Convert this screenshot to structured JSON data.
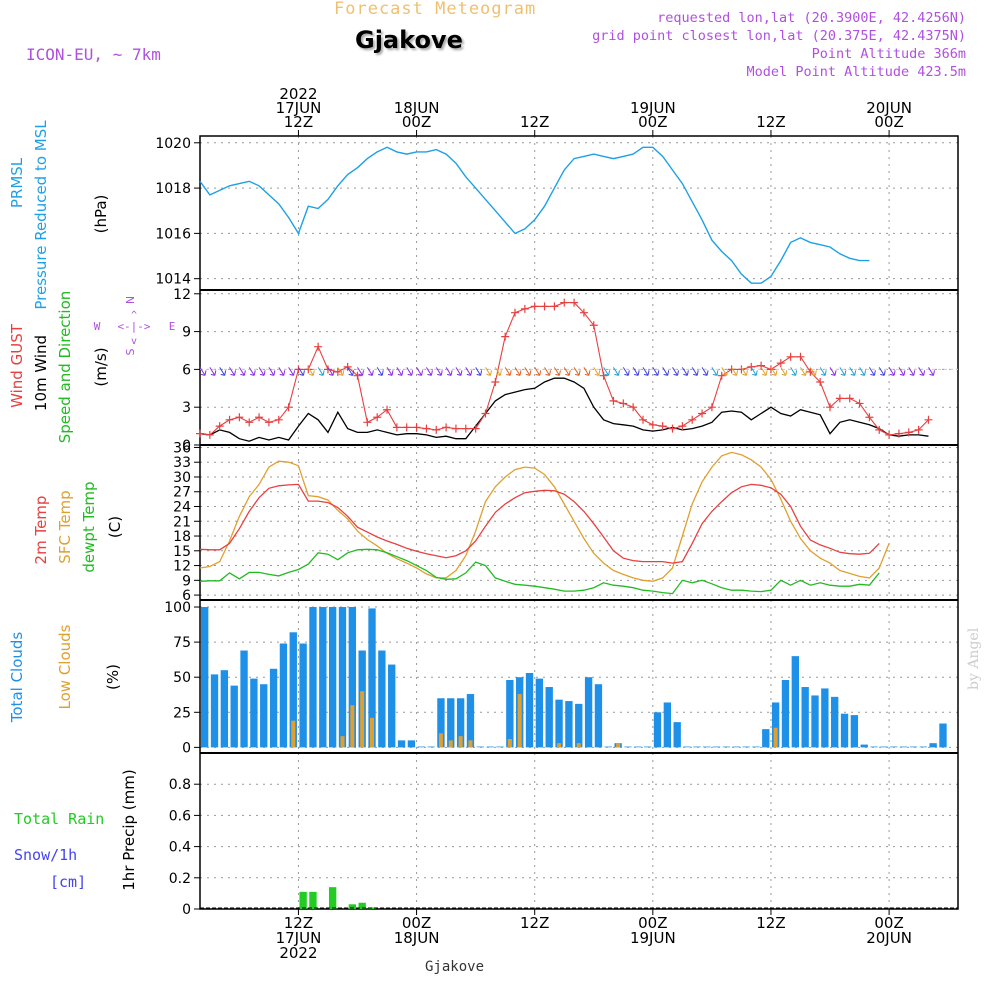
{
  "header": {
    "subtitle": "Forecast Meteogram",
    "location": "Gjakove",
    "model": "ICON-EU, ~ 7km",
    "requested": "requested lon,lat (20.3900E, 42.4256N)",
    "gridpoint": "grid point closest lon,lat (20.375E, 42.4375N)",
    "point_alt": "Point Altitude 366m",
    "model_alt": "Model Point Altitude 423.5m",
    "watermark": "by Angel",
    "footer_location": "Gjakove"
  },
  "colors": {
    "pressure": "#1ea0e6",
    "gust": "#e84040",
    "wind": "#000000",
    "temp2m": "#e84040",
    "sfc": "#e0a030",
    "dewpt": "#22bb22",
    "total_clouds": "#1e90e8",
    "low_clouds": "#e0a030",
    "rain": "#22cc22",
    "snow": "#4444ee",
    "header_purple": "#b050e0",
    "subtitle": "#f0c070"
  },
  "chart_data": {
    "type": "line",
    "time_axis": {
      "start_hour": 0,
      "end_hour": 77,
      "hour_of_first_point": "2022-06-17 02Z",
      "top_ticks": [
        {
          "hour": 10,
          "lines": [
            "2022",
            "17JUN",
            "12Z"
          ]
        },
        {
          "hour": 22,
          "lines": [
            "18JUN",
            "00Z"
          ]
        },
        {
          "hour": 34,
          "lines": [
            "12Z"
          ]
        },
        {
          "hour": 46,
          "lines": [
            "19JUN",
            "00Z"
          ]
        },
        {
          "hour": 58,
          "lines": [
            "12Z"
          ]
        },
        {
          "hour": 70,
          "lines": [
            "20JUN",
            "00Z"
          ]
        }
      ],
      "bottom_ticks": [
        {
          "hour": 10,
          "lines": [
            "12Z",
            "17JUN",
            "2022"
          ]
        },
        {
          "hour": 22,
          "lines": [
            "00Z",
            "18JUN"
          ]
        },
        {
          "hour": 34,
          "lines": [
            "12Z"
          ]
        },
        {
          "hour": 46,
          "lines": [
            "00Z",
            "19JUN"
          ]
        },
        {
          "hour": 58,
          "lines": [
            "12Z"
          ]
        },
        {
          "hour": 70,
          "lines": [
            "00Z",
            "20JUN"
          ]
        }
      ]
    },
    "pressure": {
      "title": "PRMSL Pressure Reduced to MSL",
      "title_lines": [
        "PRMSL",
        "Pressure Reduced to MSL"
      ],
      "unit": "(hPa)",
      "ylim": [
        1013.5,
        1020.3
      ],
      "yticks": [
        1014,
        1016,
        1018,
        1020
      ],
      "values": [
        1018.3,
        1017.7,
        1017.9,
        1018.1,
        1018.2,
        1018.3,
        1018.1,
        1017.7,
        1017.3,
        1016.7,
        1016.0,
        1017.2,
        1017.1,
        1017.5,
        1018.1,
        1018.6,
        1018.9,
        1019.3,
        1019.6,
        1019.8,
        1019.6,
        1019.5,
        1019.6,
        1019.6,
        1019.7,
        1019.5,
        1019.1,
        1018.5,
        1018.0,
        1017.5,
        1017.0,
        1016.5,
        1016.0,
        1016.2,
        1016.6,
        1017.2,
        1018.0,
        1018.8,
        1019.3,
        1019.4,
        1019.5,
        1019.4,
        1019.3,
        1019.4,
        1019.5,
        1019.8,
        1019.8,
        1019.4,
        1018.8,
        1018.2,
        1017.4,
        1016.6,
        1015.7,
        1015.2,
        1014.8,
        1014.2,
        1013.8,
        1013.8,
        1014.1,
        1014.8,
        1015.6,
        1015.8,
        1015.6,
        1015.5,
        1015.4,
        1015.1,
        1014.9,
        1014.8,
        1014.8
      ]
    },
    "wind": {
      "title_lines": [
        "Wind GUST",
        "10m Wind",
        "Speed and Direction"
      ],
      "unit": "(m/s)",
      "compass": {
        "n": "N",
        "s": "S",
        "w": "W",
        "e": "E",
        "mid": "<-|->"
      },
      "ylim": [
        0,
        12.3
      ],
      "yticks": [
        0,
        3,
        6,
        9,
        12
      ],
      "gust": [
        0.9,
        0.8,
        1.5,
        2.0,
        2.2,
        1.8,
        2.2,
        1.8,
        2.0,
        3.0,
        6.0,
        6.0,
        7.8,
        6.0,
        5.8,
        6.2,
        5.5,
        1.8,
        2.2,
        2.8,
        1.4,
        1.4,
        1.4,
        1.3,
        1.2,
        1.4,
        1.3,
        1.3,
        1.3,
        2.5,
        5.0,
        8.6,
        10.5,
        10.8,
        11.0,
        11.0,
        11.0,
        11.3,
        11.3,
        10.5,
        9.5,
        5.5,
        3.5,
        3.3,
        3.0,
        2.0,
        1.6,
        1.5,
        1.3,
        1.5,
        2.0,
        2.5,
        3.0,
        5.5,
        6.0,
        6.0,
        6.2,
        6.3,
        6.0,
        6.5,
        7.0,
        7.0,
        5.8,
        5.0,
        3.0,
        3.7,
        3.7,
        3.3,
        2.2,
        1.2,
        0.8,
        0.9,
        1.0,
        1.2,
        2.0
      ],
      "wind": [
        0.9,
        0.8,
        1.2,
        1.0,
        0.5,
        0.3,
        0.6,
        0.4,
        0.6,
        0.4,
        1.5,
        2.5,
        2.0,
        1.0,
        2.6,
        1.3,
        1.0,
        1.0,
        1.2,
        1.0,
        0.8,
        0.9,
        0.9,
        0.8,
        0.6,
        0.7,
        0.5,
        0.5,
        1.5,
        2.5,
        3.5,
        4.0,
        4.2,
        4.4,
        4.5,
        5.0,
        5.3,
        5.3,
        5.0,
        4.5,
        3.0,
        2.0,
        1.7,
        1.6,
        1.5,
        1.2,
        1.1,
        1.2,
        1.4,
        1.2,
        1.3,
        1.5,
        1.8,
        2.6,
        2.7,
        2.6,
        2.0,
        2.5,
        3.0,
        2.5,
        2.3,
        2.8,
        2.6,
        2.4,
        0.9,
        1.8,
        2.0,
        1.8,
        1.6,
        1.3,
        0.8,
        0.7,
        0.8,
        0.8,
        0.7
      ]
    },
    "temperature": {
      "title_lines": [
        "2m Temp",
        "SFC Temp",
        "dewpt Temp"
      ],
      "unit": "(C)",
      "ylim": [
        5,
        36.5
      ],
      "yticks": [
        6,
        9,
        12,
        15,
        18,
        21,
        24,
        27,
        30,
        33,
        36
      ],
      "t2m": [
        15.3,
        15.2,
        15.2,
        16.5,
        19.5,
        23.0,
        25.8,
        27.7,
        28.2,
        28.4,
        28.5,
        25.1,
        25.1,
        24.8,
        23.8,
        22.0,
        19.8,
        18.8,
        17.8,
        17.0,
        16.3,
        15.5,
        14.9,
        14.4,
        14.0,
        13.6,
        14.0,
        15.0,
        17.0,
        20.0,
        22.8,
        24.5,
        25.8,
        26.8,
        27.1,
        27.3,
        27.2,
        26.5,
        25.0,
        23.0,
        20.5,
        17.8,
        15.0,
        13.5,
        13.0,
        12.8,
        12.8,
        12.8,
        12.5,
        12.8,
        16.5,
        20.5,
        23.0,
        25.0,
        26.8,
        28.0,
        28.5,
        28.3,
        27.8,
        26.5,
        24.0,
        20.0,
        17.2,
        16.2,
        15.5,
        14.7,
        14.4,
        14.3,
        14.5,
        16.5
      ],
      "sfc": [
        11.5,
        11.8,
        12.8,
        17.0,
        22.0,
        26.0,
        28.5,
        32.0,
        33.2,
        33.0,
        32.3,
        26.2,
        26.0,
        25.3,
        23.2,
        21.5,
        19.0,
        17.3,
        16.0,
        14.5,
        13.4,
        12.5,
        11.5,
        10.3,
        9.5,
        9.5,
        11.0,
        14.0,
        19.0,
        25.0,
        28.0,
        30.0,
        31.5,
        32.0,
        31.8,
        30.5,
        28.0,
        24.5,
        21.0,
        17.5,
        14.5,
        12.5,
        11.0,
        10.2,
        9.5,
        9.0,
        8.8,
        9.5,
        11.5,
        18.0,
        24.5,
        29.0,
        32.0,
        34.3,
        35.0,
        34.5,
        33.5,
        32.0,
        29.5,
        25.5,
        21.0,
        17.5,
        15.0,
        13.5,
        12.5,
        11.0,
        10.4,
        9.8,
        9.5,
        11.5,
        16.5
      ],
      "dewpt": [
        8.8,
        8.9,
        8.9,
        10.5,
        9.3,
        10.6,
        10.6,
        10.2,
        9.9,
        10.6,
        11.2,
        12.3,
        14.6,
        14.3,
        13.2,
        14.6,
        15.2,
        15.3,
        15.2,
        14.6,
        13.8,
        13.0,
        12.0,
        11.0,
        9.6,
        9.2,
        9.3,
        10.5,
        12.7,
        12.0,
        9.5,
        8.8,
        8.2,
        8.0,
        7.8,
        7.5,
        7.2,
        6.8,
        6.8,
        7.0,
        7.5,
        8.5,
        8.0,
        7.8,
        7.5,
        7.0,
        6.8,
        6.5,
        6.3,
        9.0,
        8.5,
        9.0,
        8.3,
        7.5,
        7.0,
        7.0,
        6.8,
        6.7,
        7.0,
        9.0,
        8.0,
        9.0,
        8.0,
        8.5,
        8.0,
        7.8,
        7.8,
        8.2,
        8.0,
        10.5
      ]
    },
    "clouds": {
      "title_lines": [
        "Total Clouds",
        "Low Clouds"
      ],
      "unit": "(%)",
      "ylim": [
        -4,
        105
      ],
      "yticks": [
        0,
        25,
        50,
        75,
        100
      ],
      "total": [
        100,
        52,
        55,
        44,
        69,
        49,
        45,
        56,
        74,
        82,
        74,
        100,
        100,
        100,
        100,
        100,
        69,
        99,
        69,
        59,
        5,
        5,
        0,
        0,
        35,
        35,
        35,
        38,
        0,
        0,
        0,
        48,
        50,
        53,
        49,
        43,
        34,
        33,
        31,
        50,
        45,
        0,
        3,
        0,
        0,
        0,
        25,
        32,
        18,
        0,
        0,
        0,
        0,
        0,
        0,
        0,
        0,
        13,
        32,
        48,
        65,
        43,
        37,
        42,
        36,
        24,
        23,
        2,
        0,
        0,
        0,
        0,
        0,
        0,
        3,
        17
      ],
      "low": [
        0,
        0,
        0,
        0,
        0,
        0,
        0,
        0,
        0,
        19,
        0,
        0,
        0,
        0,
        8,
        30,
        40,
        21,
        0,
        0,
        0,
        0,
        0,
        0,
        10,
        5,
        8,
        5,
        0,
        0,
        0,
        6,
        38,
        0,
        0,
        0,
        3,
        0,
        3,
        0,
        0,
        0,
        3,
        0,
        0,
        0,
        0,
        0,
        0,
        0,
        0,
        0,
        0,
        0,
        0,
        0,
        0,
        0,
        14,
        0,
        0,
        0,
        0,
        0,
        0,
        0,
        0,
        0,
        0,
        0,
        0,
        0,
        0,
        0,
        0,
        0
      ]
    },
    "precip": {
      "title_lines": [
        "Total  Rain",
        "Snow/1h",
        "[cm]"
      ],
      "unit": "1hr Precip (mm)",
      "ylim": [
        0,
        1.0
      ],
      "yticks": [
        0,
        0.2,
        0.4,
        0.6,
        0.8
      ],
      "rain": [
        0,
        0,
        0,
        0,
        0,
        0,
        0,
        0,
        0,
        0,
        0.11,
        0.11,
        0,
        0.14,
        0,
        0.03,
        0.04,
        0.01,
        0,
        0,
        0,
        0,
        0,
        0,
        0,
        0,
        0,
        0,
        0,
        0,
        0,
        0,
        0,
        0,
        0,
        0,
        0,
        0,
        0,
        0,
        0,
        0,
        0,
        0,
        0,
        0,
        0,
        0,
        0,
        0,
        0,
        0,
        0,
        0,
        0,
        0,
        0,
        0,
        0,
        0,
        0,
        0,
        0,
        0,
        0,
        0,
        0,
        0,
        0,
        0,
        0,
        0,
        0,
        0,
        0,
        0
      ]
    }
  }
}
